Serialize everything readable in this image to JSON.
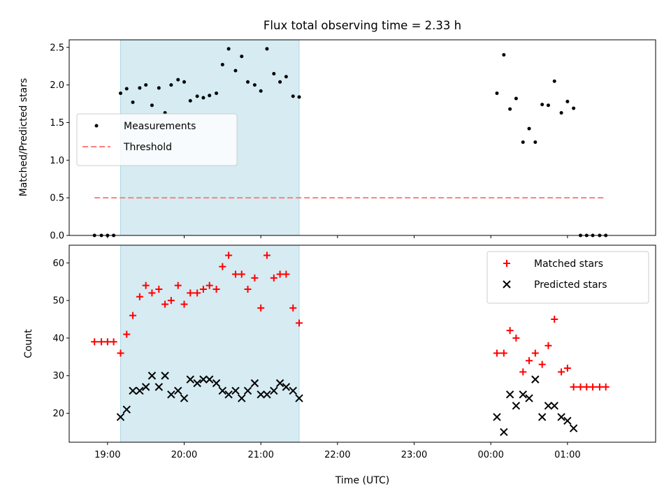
{
  "chart_data": {
    "title": "Flux total observing time = 2.33 h",
    "shared_x": {
      "label": "Time (UTC)",
      "unit": "hours",
      "range": [
        18.5,
        26.15
      ],
      "ticks": [
        {
          "value": 19,
          "label": "19:00"
        },
        {
          "value": 20,
          "label": "20:00"
        },
        {
          "value": 21,
          "label": "21:00"
        },
        {
          "value": 22,
          "label": "22:00"
        },
        {
          "value": 23,
          "label": "23:00"
        },
        {
          "value": 24,
          "label": "00:00"
        },
        {
          "value": 25,
          "label": "01:00"
        }
      ]
    },
    "shaded_span": [
      19.17,
      21.5
    ],
    "span_color": "#add8e6",
    "top": {
      "type": "scatter",
      "ylabel": "Matched/Predicted stars",
      "ylim": [
        0,
        2.6
      ],
      "yticks": [
        0.0,
        0.5,
        1.0,
        1.5,
        2.0,
        2.5
      ],
      "ytick_labels": [
        "0.0",
        "0.5",
        "1.0",
        "1.5",
        "2.0",
        "2.5"
      ],
      "legend_position": "center-left",
      "series": [
        {
          "name": "Measurements",
          "marker": "dot",
          "color": "#000000",
          "x": [
            18.83,
            18.92,
            19.0,
            19.08,
            19.17,
            19.25,
            19.33,
            19.42,
            19.5,
            19.58,
            19.67,
            19.75,
            19.83,
            19.92,
            20.0,
            20.08,
            20.17,
            20.25,
            20.33,
            20.42,
            20.5,
            20.58,
            20.67,
            20.75,
            20.83,
            20.92,
            21.0,
            21.08,
            21.17,
            21.25,
            21.33,
            21.42,
            21.5,
            24.08,
            24.17,
            24.25,
            24.33,
            24.42,
            24.5,
            24.58,
            24.67,
            24.75,
            24.83,
            24.92,
            25.0,
            25.08,
            25.17,
            25.25,
            25.33,
            25.42,
            25.5
          ],
          "y": [
            0.0,
            0.0,
            0.0,
            0.0,
            1.89,
            1.95,
            1.77,
            1.96,
            2.0,
            1.73,
            1.96,
            1.63,
            2.0,
            2.07,
            2.04,
            1.79,
            1.85,
            1.83,
            1.86,
            1.89,
            2.27,
            2.48,
            2.19,
            2.38,
            2.04,
            2.0,
            1.92,
            2.48,
            2.15,
            2.04,
            2.11,
            1.85,
            1.84,
            1.89,
            2.4,
            1.68,
            1.82,
            1.24,
            1.42,
            1.24,
            1.74,
            1.73,
            2.05,
            1.63,
            1.78,
            1.69,
            0.0,
            0.0,
            0.0,
            0.0,
            0.0
          ]
        },
        {
          "name": "Threshold",
          "marker": "dashed-line",
          "color": "#ff7f7f",
          "x": [
            18.83,
            25.5
          ],
          "y": [
            0.5,
            0.5
          ]
        }
      ]
    },
    "bottom": {
      "type": "scatter",
      "ylabel": "Count",
      "ylim": [
        12.3,
        64.7
      ],
      "yticks": [
        20,
        30,
        40,
        50,
        60
      ],
      "ytick_labels": [
        "20",
        "30",
        "40",
        "50",
        "60"
      ],
      "legend_position": "top-right",
      "series": [
        {
          "name": "Matched stars",
          "marker": "plus",
          "color": "#ff0000",
          "x": [
            18.83,
            18.92,
            19.0,
            19.08,
            19.17,
            19.25,
            19.33,
            19.42,
            19.5,
            19.58,
            19.67,
            19.75,
            19.83,
            19.92,
            20.0,
            20.08,
            20.17,
            20.25,
            20.33,
            20.42,
            20.5,
            20.58,
            20.67,
            20.75,
            20.83,
            20.92,
            21.0,
            21.08,
            21.17,
            21.25,
            21.33,
            21.42,
            21.5,
            24.08,
            24.17,
            24.25,
            24.33,
            24.42,
            24.5,
            24.58,
            24.67,
            24.75,
            24.83,
            24.92,
            25.0,
            25.08,
            25.17,
            25.25,
            25.33,
            25.42,
            25.5
          ],
          "y": [
            39,
            39,
            39,
            39,
            36,
            41,
            46,
            51,
            54,
            52,
            53,
            49,
            50,
            54,
            49,
            52,
            52,
            53,
            54,
            53,
            59,
            62,
            57,
            57,
            53,
            56,
            48,
            62,
            56,
            57,
            57,
            48,
            44,
            36,
            36,
            42,
            40,
            31,
            34,
            36,
            33,
            38,
            45,
            31,
            32,
            27,
            27,
            27,
            27,
            27,
            27
          ]
        },
        {
          "name": "Predicted stars",
          "marker": "x",
          "color": "#000000",
          "x": [
            19.17,
            19.25,
            19.33,
            19.42,
            19.5,
            19.58,
            19.67,
            19.75,
            19.83,
            19.92,
            20.0,
            20.08,
            20.17,
            20.25,
            20.33,
            20.42,
            20.5,
            20.58,
            20.67,
            20.75,
            20.83,
            20.92,
            21.0,
            21.08,
            21.17,
            21.25,
            21.33,
            21.42,
            21.5,
            24.08,
            24.17,
            24.25,
            24.33,
            24.42,
            24.5,
            24.58,
            24.67,
            24.75,
            24.83,
            24.92,
            25.0,
            25.08
          ],
          "y": [
            19,
            21,
            26,
            26,
            27,
            30,
            27,
            30,
            25,
            26,
            24,
            29,
            28,
            29,
            29,
            28,
            26,
            25,
            26,
            24,
            26,
            28,
            25,
            25,
            26,
            28,
            27,
            26,
            24,
            19,
            15,
            25,
            22,
            25,
            24,
            29,
            19,
            22,
            22,
            19,
            18,
            16
          ]
        }
      ]
    }
  }
}
